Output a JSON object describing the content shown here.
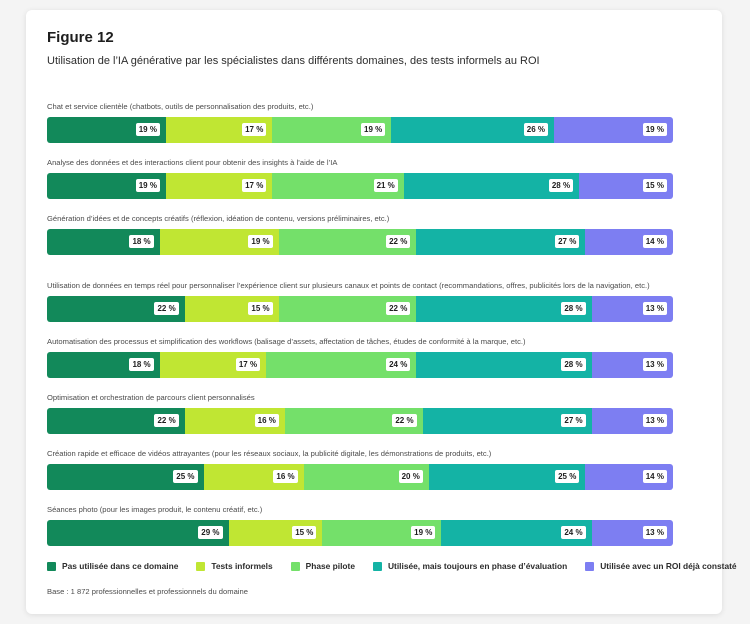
{
  "figure": {
    "title": "Figure 12",
    "subtitle": "Utilisation de l’IA générative par les spécialistes dans différents domaines, des tests informels au ROI",
    "base_note": "Base : 1 872 professionnelles et professionnels du domaine"
  },
  "colors": {
    "series": [
      "#12895a",
      "#c0e633",
      "#74e06a",
      "#14b3a5",
      "#7d7ef2"
    ],
    "card_background": "#ffffff",
    "page_background": "#f4f4f4"
  },
  "chart_data": {
    "type": "bar",
    "orientation": "horizontal",
    "stacked": true,
    "percent_stacked": true,
    "value_suffix": " %",
    "legend_placement": "bottom",
    "grid": false,
    "categories": [
      "Chat et service clientèle (chatbots, outils de personnalisation des produits, etc.)",
      "Analyse des données et des interactions client pour obtenir des insights à l’aide de l’IA",
      "Génération d’idées et de concepts créatifs (réflexion, idéation de contenu, versions préliminaires, etc.)",
      "Utilisation de données en temps réel pour personnaliser l’expérience client sur plusieurs canaux et points de contact (recommandations, offres, publicités lors de la navigation, etc.)",
      "Automatisation des processus et simplification des workflows (balisage d’assets, affectation de tâches, études de conformité à la marque, etc.)",
      "Optimisation et orchestration de parcours client personnalisés",
      "Création rapide et efficace de vidéos attrayantes (pour les réseaux sociaux, la publicité digitale, les démonstrations de produits, etc.)",
      "Séances photo (pour les images produit, le contenu créatif, etc.)"
    ],
    "series": [
      {
        "name": "Pas utilisée dans ce domaine",
        "values": [
          19,
          19,
          18,
          22,
          18,
          22,
          25,
          29
        ]
      },
      {
        "name": "Tests informels",
        "values": [
          17,
          17,
          19,
          15,
          17,
          16,
          16,
          15
        ]
      },
      {
        "name": "Phase pilote",
        "values": [
          19,
          21,
          22,
          22,
          24,
          22,
          20,
          19
        ]
      },
      {
        "name": "Utilisée, mais toujours en phase d’évaluation",
        "values": [
          26,
          28,
          27,
          28,
          28,
          27,
          25,
          24
        ]
      },
      {
        "name": "Utilisée avec un ROI déjà constaté",
        "values": [
          19,
          15,
          14,
          13,
          13,
          13,
          14,
          13
        ]
      }
    ]
  }
}
